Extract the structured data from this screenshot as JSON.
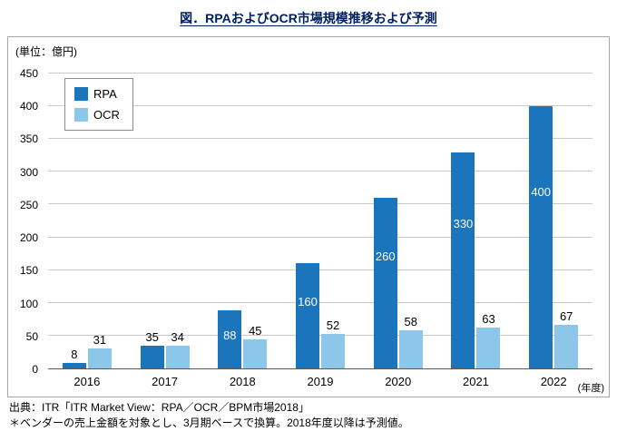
{
  "title": "図．RPAおよびOCR市場規模推移および予測",
  "unit_label": "(単位：億円)",
  "footer": {
    "source": "出典：ITR「ITR Market View：RPA／OCR／BPM市場2018」",
    "note": "＊ベンダーの売上金額を対象とし、3月期ベースで換算。2018年度以降は予測値。"
  },
  "colors": {
    "rpa": "#1b75bc",
    "ocr": "#8cc6e9",
    "title_text": "#002060",
    "gridline": "#c9c9c9",
    "box_border": "#a6a6a6",
    "axis_line": "#595959"
  },
  "chart_data": {
    "type": "bar",
    "title": "図．RPAおよびOCR市場規模推移および予測",
    "unit": "億円",
    "categories": [
      "2016",
      "2017",
      "2018",
      "2019",
      "2020",
      "2021",
      "2022"
    ],
    "series": [
      {
        "name": "RPA",
        "color": "#1b75bc",
        "values": [
          8,
          35,
          88,
          160,
          260,
          330,
          400
        ],
        "label_placement": [
          "above",
          "above",
          "inside",
          "inside",
          "inside",
          "inside",
          "inside"
        ]
      },
      {
        "name": "OCR",
        "color": "#8cc6e9",
        "values": [
          31,
          34,
          45,
          52,
          58,
          63,
          67
        ],
        "label_placement": [
          "above",
          "above",
          "above",
          "above",
          "above",
          "above",
          "above"
        ]
      }
    ],
    "ylim": [
      0,
      450
    ],
    "ytick_step": 50,
    "grid": true,
    "legend_position": "top-left",
    "xlabel_suffix": "(年度)"
  }
}
